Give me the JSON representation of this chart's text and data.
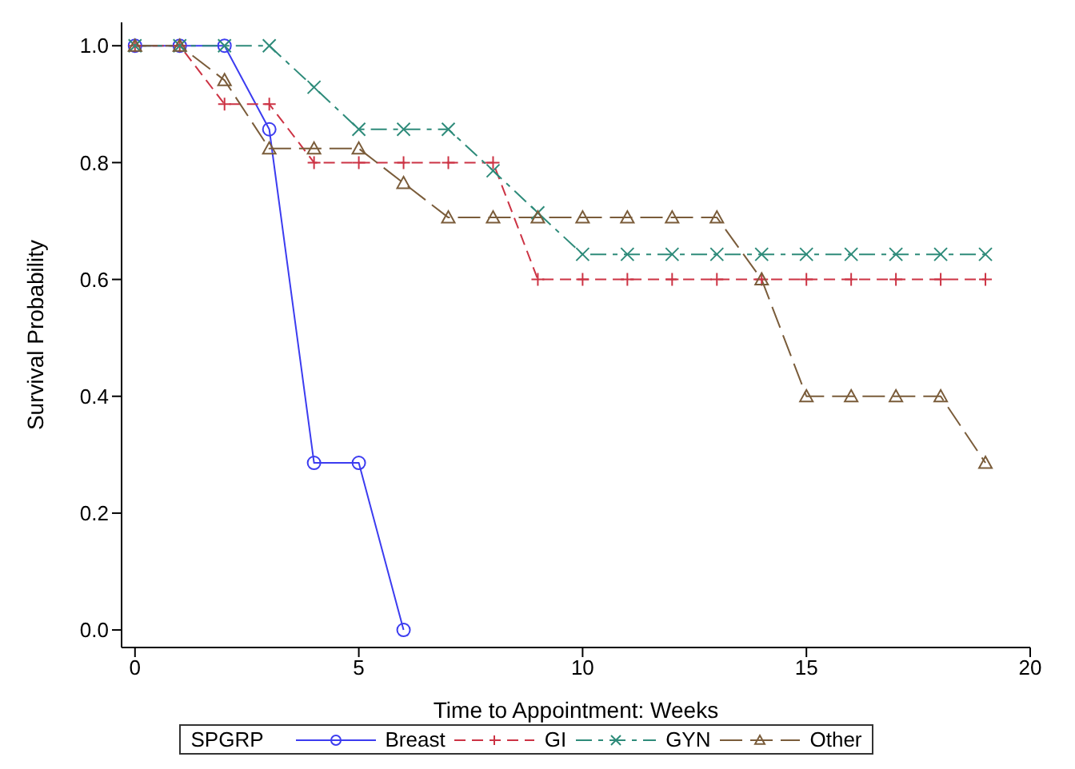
{
  "chart_data": {
    "type": "line",
    "xlabel": "Time to Appointment:  Weeks",
    "ylabel": "Survival Probability",
    "legend_title": "SPGRP",
    "legend": "bottom",
    "grid": false,
    "xlim": [
      -0.3,
      20
    ],
    "xticks": [
      0,
      5,
      10,
      15,
      20
    ],
    "ylim": [
      -0.03,
      1.04
    ],
    "yticks": [
      {
        "value": 0,
        "label": "0.0"
      },
      {
        "value": 0.2,
        "label": "0.2"
      },
      {
        "value": 0.4,
        "label": "0.4"
      },
      {
        "value": 0.6,
        "label": "0.6"
      },
      {
        "value": 0.8,
        "label": "0.8"
      },
      {
        "value": 1,
        "label": "1.0"
      }
    ],
    "series": [
      {
        "name": "Breast",
        "color": "#3c3cf0",
        "marker": "circle",
        "line_style": "solid",
        "x": [
          0,
          1,
          2,
          3,
          4,
          5,
          6
        ],
        "values": [
          1,
          1,
          1,
          0.857,
          0.286,
          0.286,
          0
        ]
      },
      {
        "name": "GI",
        "color": "#cc3344",
        "marker": "plus",
        "line_style": "dashed",
        "x": [
          0,
          1,
          2,
          3,
          4,
          5,
          6,
          7,
          8,
          9,
          10,
          11,
          12,
          13,
          14,
          15,
          16,
          17,
          18,
          19
        ],
        "values": [
          1,
          1,
          0.9,
          0.9,
          0.8,
          0.8,
          0.8,
          0.8,
          0.8,
          0.6,
          0.6,
          0.6,
          0.6,
          0.6,
          0.6,
          0.6,
          0.6,
          0.6,
          0.6,
          0.6
        ]
      },
      {
        "name": "GYN",
        "color": "#2e8b7a",
        "marker": "cross",
        "line_style": "dashdot",
        "x": [
          0,
          1,
          2,
          3,
          4,
          5,
          6,
          7,
          8,
          9,
          10,
          11,
          12,
          13,
          14,
          15,
          16,
          17,
          18,
          19
        ],
        "values": [
          1,
          1,
          1,
          1,
          0.929,
          0.857,
          0.857,
          0.857,
          0.786,
          0.714,
          0.643,
          0.643,
          0.643,
          0.643,
          0.643,
          0.643,
          0.643,
          0.643,
          0.643,
          0.643
        ]
      },
      {
        "name": "Other",
        "color": "#7a5c3a",
        "marker": "triangle",
        "line_style": "longdash",
        "x": [
          0,
          1,
          2,
          3,
          4,
          5,
          6,
          7,
          8,
          9,
          10,
          11,
          12,
          13,
          14,
          15,
          16,
          17,
          18,
          19
        ],
        "values": [
          1,
          1,
          0.941,
          0.824,
          0.824,
          0.824,
          0.765,
          0.706,
          0.706,
          0.706,
          0.706,
          0.706,
          0.706,
          0.706,
          0.6,
          0.4,
          0.4,
          0.4,
          0.4,
          0.286
        ]
      }
    ]
  }
}
